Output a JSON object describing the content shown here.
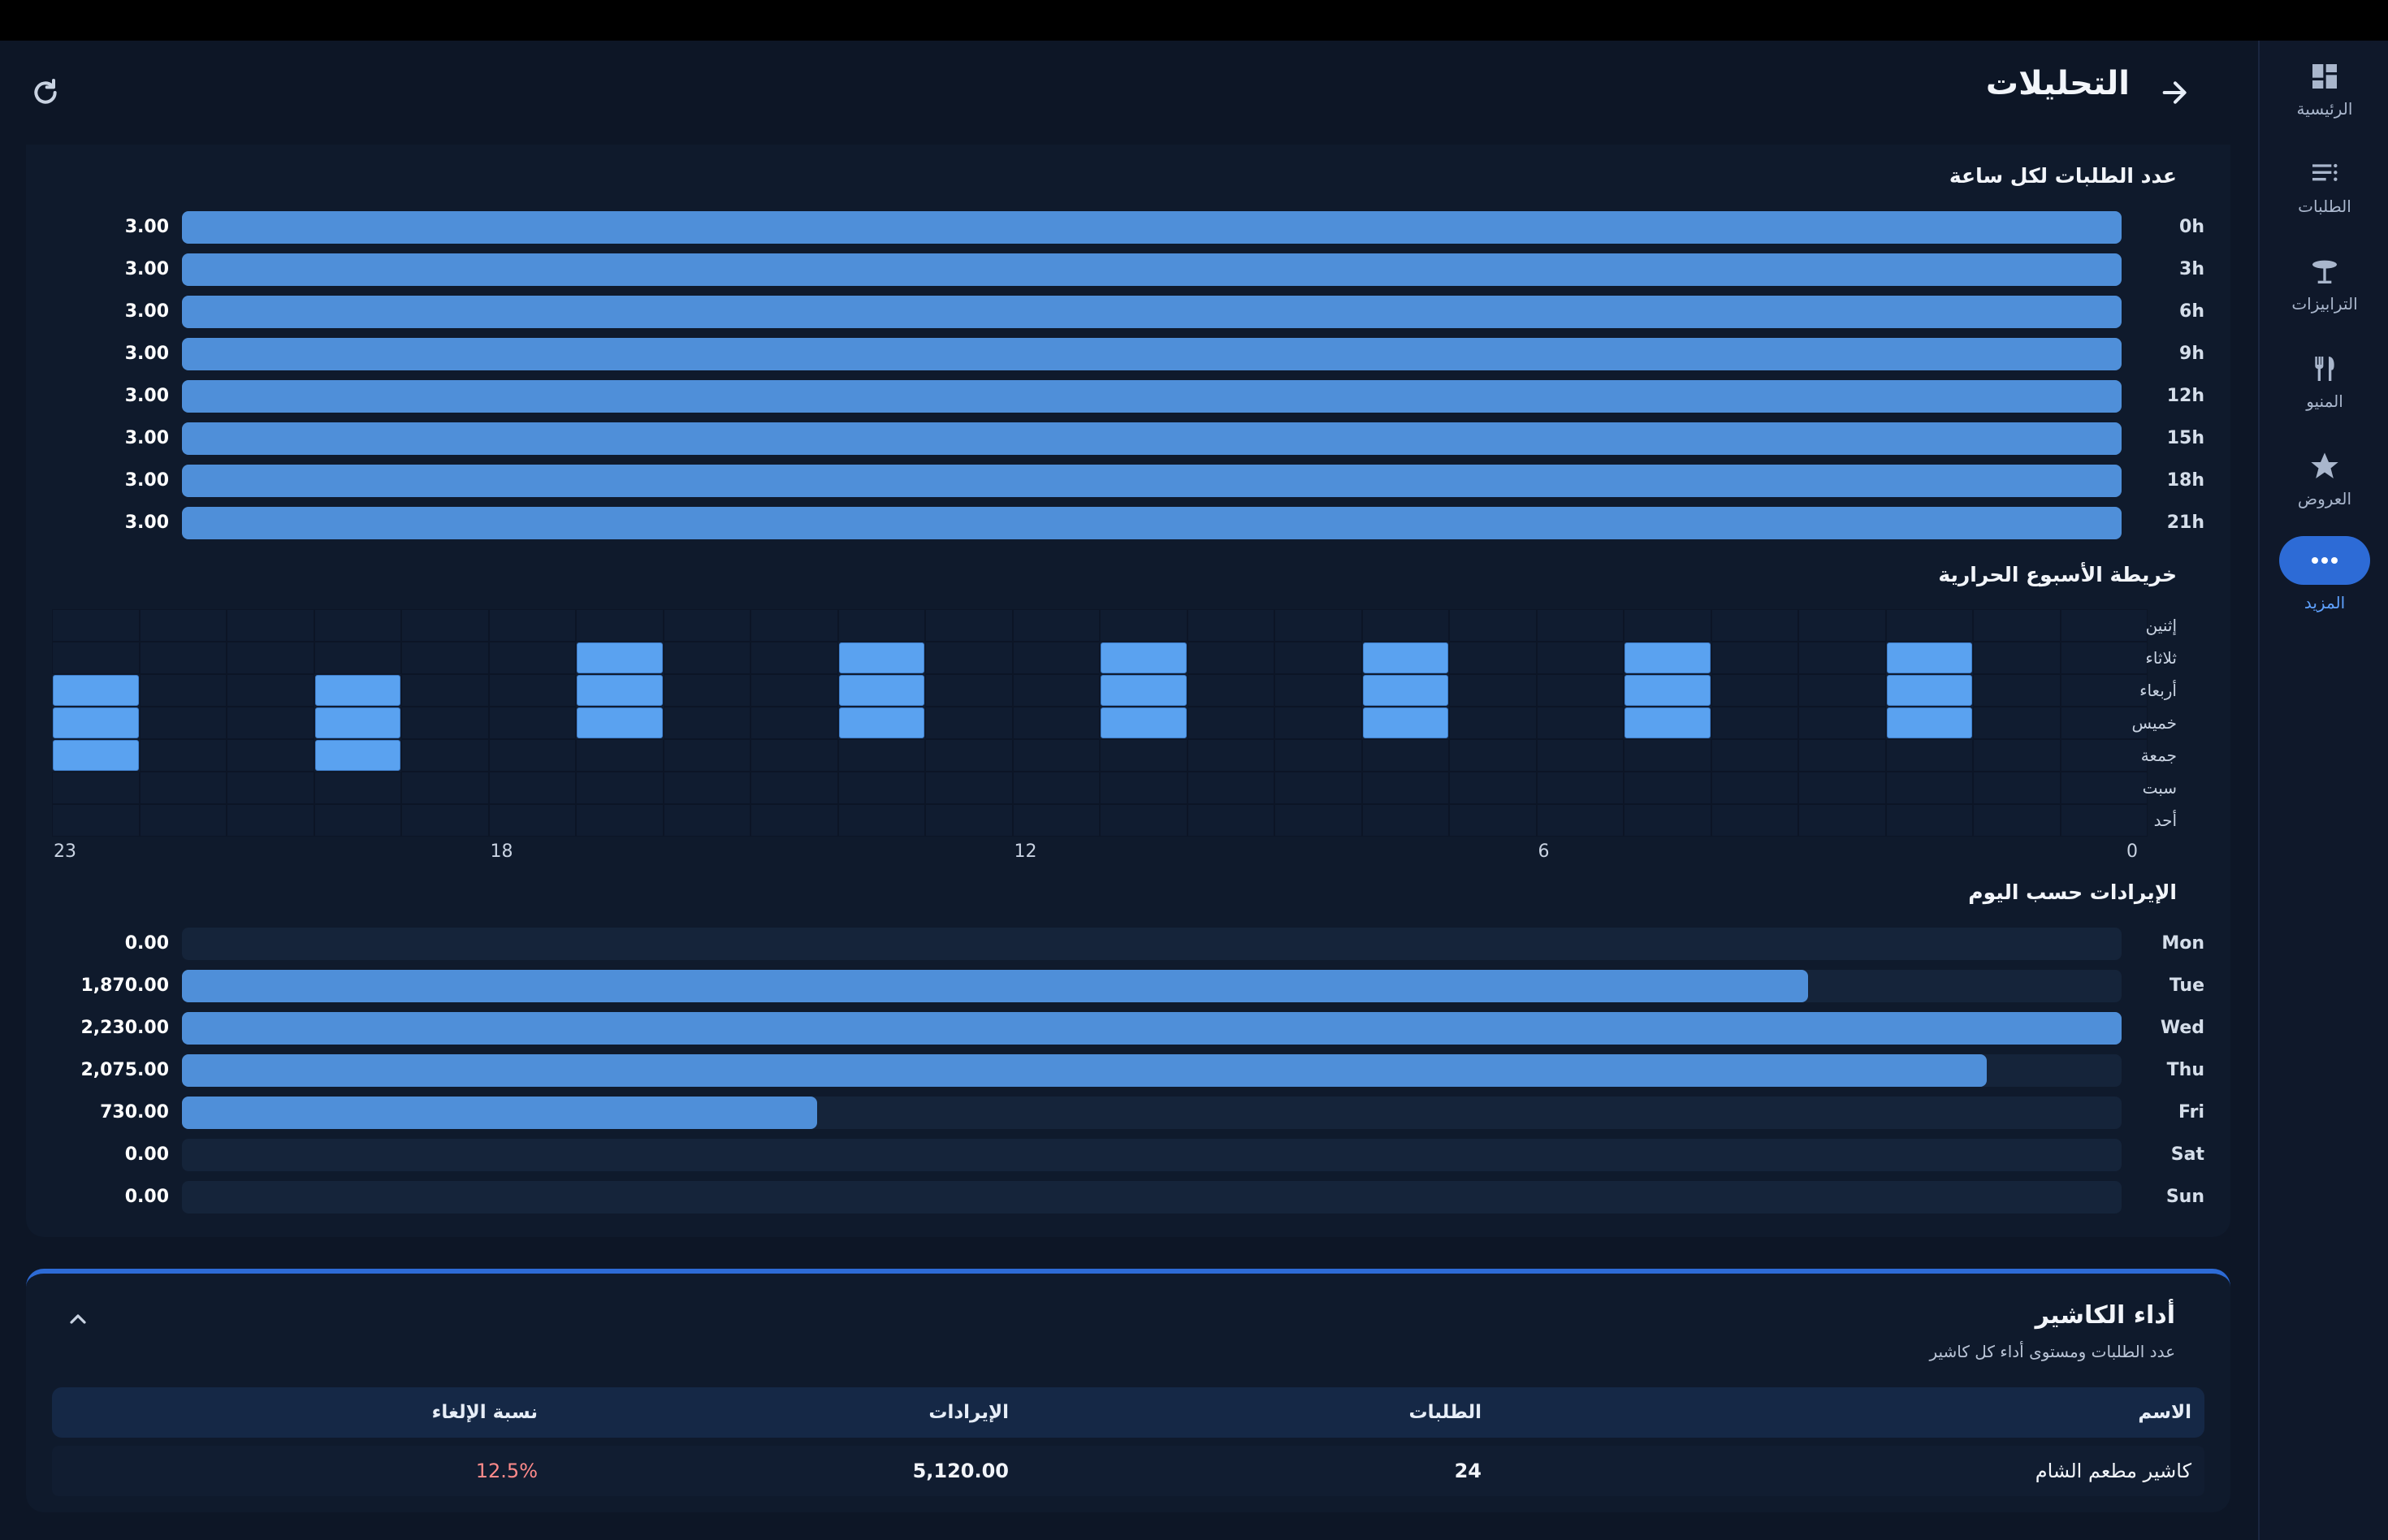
{
  "colors": {
    "bar": "#4f8fd9",
    "heat_on": "#5aa2f0",
    "accent": "#2d6bd6",
    "cancel_rate": "#ff8a8a"
  },
  "header": {
    "title": "التحليلات",
    "back_icon": "arrow-right-icon",
    "refresh_icon": "refresh-icon"
  },
  "nav": {
    "items": [
      {
        "label": "الرئيسية",
        "icon": "dashboard-icon"
      },
      {
        "label": "الطلبات",
        "icon": "list-icon"
      },
      {
        "label": "الترابيزات",
        "icon": "table-icon"
      },
      {
        "label": "المنيو",
        "icon": "fork-knife-icon"
      },
      {
        "label": "العروض",
        "icon": "star-icon"
      },
      {
        "label": "المزيد",
        "icon": "more-icon",
        "active": true
      }
    ]
  },
  "hourly": {
    "title": "عدد الطلبات لكل ساعة",
    "chart_data": {
      "type": "bar",
      "orientation": "horizontal",
      "categories": [
        "0h",
        "3h",
        "6h",
        "9h",
        "12h",
        "15h",
        "18h",
        "21h"
      ],
      "values": [
        3.0,
        3.0,
        3.0,
        3.0,
        3.0,
        3.0,
        3.0,
        3.0
      ],
      "value_labels": [
        "3.00",
        "3.00",
        "3.00",
        "3.00",
        "3.00",
        "3.00",
        "3.00",
        "3.00"
      ],
      "xlim": [
        0,
        3
      ]
    }
  },
  "heatmap": {
    "title": "خريطة الأسبوع الحرارية",
    "chart_data": {
      "type": "heatmap",
      "days": [
        "إثنين",
        "ثلاثاء",
        "أربعاء",
        "خميس",
        "جمعة",
        "سبت",
        "أحد"
      ],
      "hours": 24,
      "hour_axis_labels": [
        "0",
        "6",
        "12",
        "18",
        "23"
      ],
      "active_cells": [
        {
          "hour": 2,
          "days": [
            "ثلاثاء",
            "أربعاء",
            "خميس"
          ]
        },
        {
          "hour": 5,
          "days": [
            "ثلاثاء",
            "أربعاء",
            "خميس"
          ]
        },
        {
          "hour": 8,
          "days": [
            "ثلاثاء",
            "أربعاء",
            "خميس"
          ]
        },
        {
          "hour": 11,
          "days": [
            "ثلاثاء",
            "أربعاء",
            "خميس"
          ]
        },
        {
          "hour": 14,
          "days": [
            "ثلاثاء",
            "أربعاء",
            "خميس"
          ]
        },
        {
          "hour": 17,
          "days": [
            "ثلاثاء",
            "أربعاء",
            "خميس"
          ]
        },
        {
          "hour": 20,
          "days": [
            "أربعاء",
            "خميس",
            "جمعة"
          ]
        },
        {
          "hour": 23,
          "days": [
            "أربعاء",
            "خميس",
            "جمعة"
          ]
        }
      ]
    }
  },
  "revenue": {
    "title": "الإيرادات حسب اليوم",
    "chart_data": {
      "type": "bar",
      "orientation": "horizontal",
      "categories": [
        "Mon",
        "Tue",
        "Wed",
        "Thu",
        "Fri",
        "Sat",
        "Sun"
      ],
      "values": [
        0,
        1870,
        2230,
        2075,
        730,
        0,
        0
      ],
      "value_labels": [
        "0.00",
        "1,870.00",
        "2,230.00",
        "2,075.00",
        "730.00",
        "0.00",
        "0.00"
      ],
      "xlim": [
        0,
        2230
      ]
    }
  },
  "cashier": {
    "title": "أداء الكاشير",
    "subtitle": "عدد الطلبات ومستوى أداء كل كاشير",
    "columns": {
      "name": "الاسم",
      "orders": "الطلبات",
      "revenue": "الإيرادات",
      "cancel": "نسبة الإلغاء"
    },
    "rows": [
      {
        "name": "كاشير مطعم الشام",
        "orders": "24",
        "revenue": "5,120.00",
        "cancel": "12.5%"
      }
    ]
  }
}
